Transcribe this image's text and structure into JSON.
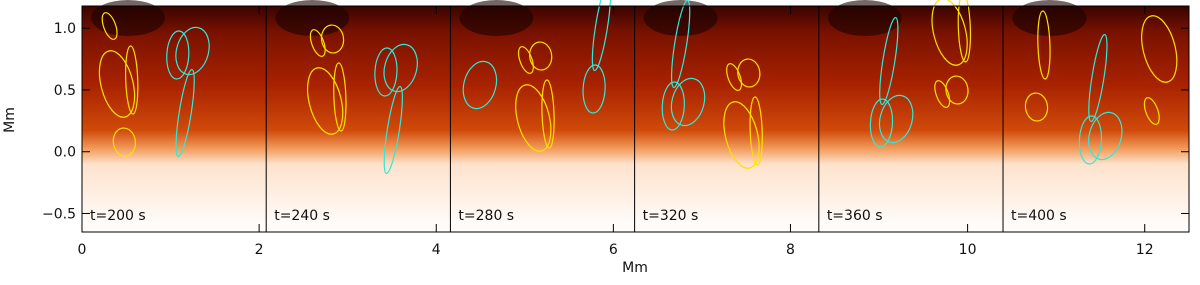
{
  "chart_data": {
    "type": "image-panels",
    "xlabel": "Mm",
    "ylabel": "Mm",
    "xlim": [
      0,
      12.5
    ],
    "xticks": [
      0,
      2,
      4,
      6,
      8,
      10,
      12
    ],
    "ylim": [
      -0.65,
      1.18
    ],
    "yticks": [
      {
        "value": -0.5,
        "label": "−0.5"
      },
      {
        "value": 0,
        "label": "0.0"
      },
      0.5,
      {
        "value": 1,
        "label": "1.0"
      }
    ],
    "panels": [
      {
        "label": "t=200 s",
        "xlim": [
          0,
          2.08
        ]
      },
      {
        "label": "t=240 s",
        "xlim": [
          2.08,
          4.16
        ]
      },
      {
        "label": "t=280 s",
        "xlim": [
          4.16,
          6.24
        ]
      },
      {
        "label": "t=320 s",
        "xlim": [
          6.24,
          8.32
        ]
      },
      {
        "label": "t=360 s",
        "xlim": [
          8.32,
          10.4
        ]
      },
      {
        "label": "t=400 s",
        "xlim": [
          10.4,
          12.5
        ]
      }
    ]
  }
}
